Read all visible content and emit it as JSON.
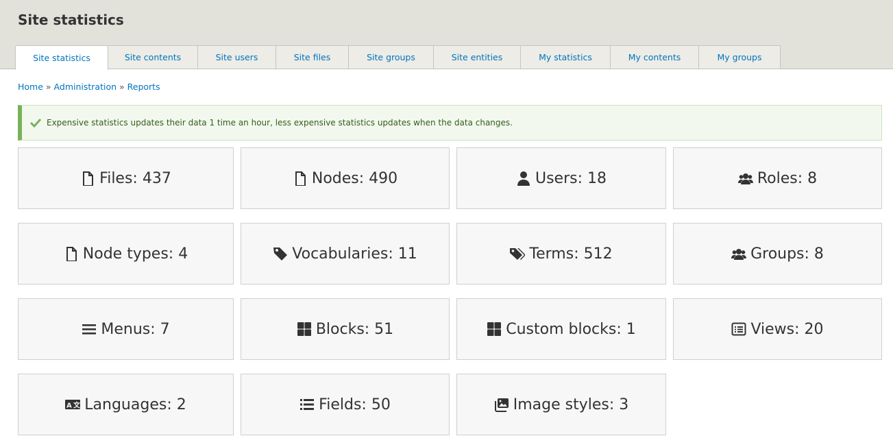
{
  "header": {
    "title": "Site statistics"
  },
  "tabs": [
    {
      "label": "Site statistics",
      "active": true
    },
    {
      "label": "Site contents"
    },
    {
      "label": "Site users"
    },
    {
      "label": "Site files"
    },
    {
      "label": "Site groups"
    },
    {
      "label": "Site entities"
    },
    {
      "label": "My statistics"
    },
    {
      "label": "My contents"
    },
    {
      "label": "My groups"
    }
  ],
  "breadcrumb": {
    "items": [
      "Home",
      "Administration",
      "Reports"
    ],
    "separator": "»"
  },
  "message": {
    "text": "Expensive statistics updates their data 1 time an hour, less expensive statistics updates when the data changes.",
    "icon": "check-icon",
    "color": "#77b259"
  },
  "stats": [
    {
      "label": "Files: 437",
      "icon": "file-icon"
    },
    {
      "label": "Nodes: 490",
      "icon": "file-icon"
    },
    {
      "label": "Users: 18",
      "icon": "user-icon"
    },
    {
      "label": "Roles: 8",
      "icon": "users-icon"
    },
    {
      "label": "Node types: 4",
      "icon": "file-icon"
    },
    {
      "label": "Vocabularies: 11",
      "icon": "tag-icon"
    },
    {
      "label": "Terms: 512",
      "icon": "tags-icon"
    },
    {
      "label": "Groups: 8",
      "icon": "users-icon"
    },
    {
      "label": "Menus: 7",
      "icon": "bars-icon"
    },
    {
      "label": "Blocks: 51",
      "icon": "grid-icon"
    },
    {
      "label": "Custom blocks: 1",
      "icon": "grid-icon"
    },
    {
      "label": "Views: 20",
      "icon": "list-alt-icon"
    },
    {
      "label": "Languages: 2",
      "icon": "language-icon"
    },
    {
      "label": "Fields: 50",
      "icon": "list-icon"
    },
    {
      "label": "Image styles: 3",
      "icon": "images-icon"
    }
  ]
}
